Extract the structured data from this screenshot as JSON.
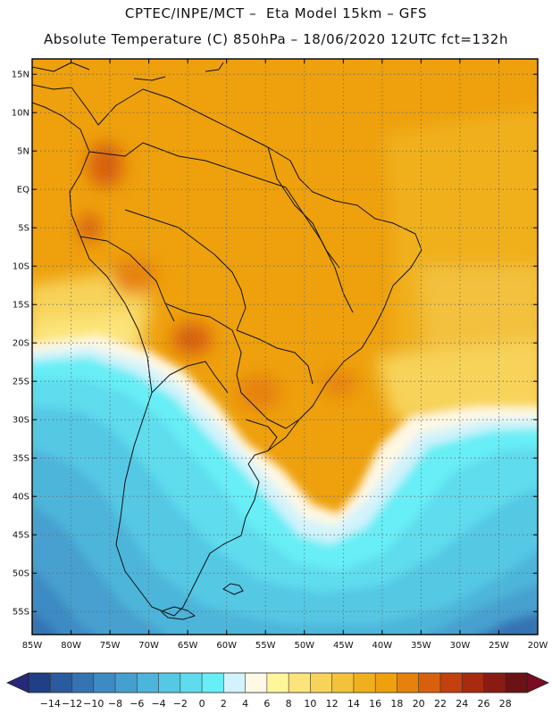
{
  "header": {
    "line1": "CPTEC/INPE/MCT –  Eta Model 15km – GFS",
    "line2": "Absolute Temperature (C) 850hPa – 18/06/2020 12UTC fct=132h"
  },
  "map": {
    "lon_range": [
      -85,
      -20
    ],
    "lat_range": [
      -58,
      17
    ],
    "lat_labels": [
      "15N",
      "10N",
      "5N",
      "EQ",
      "5S",
      "10S",
      "15S",
      "20S",
      "25S",
      "30S",
      "35S",
      "40S",
      "45S",
      "50S",
      "55S"
    ],
    "lat_values": [
      15,
      10,
      5,
      0,
      -5,
      -10,
      -15,
      -20,
      -25,
      -30,
      -35,
      -40,
      -45,
      -50,
      -55
    ],
    "lon_labels": [
      "85W",
      "80W",
      "75W",
      "70W",
      "65W",
      "60W",
      "55W",
      "50W",
      "45W",
      "40W",
      "35W",
      "30W",
      "25W",
      "20W"
    ],
    "lon_values": [
      -85,
      -80,
      -75,
      -70,
      -65,
      -60,
      -55,
      -50,
      -45,
      -40,
      -35,
      -30,
      -25,
      -20
    ]
  },
  "colorbar": {
    "labels": [
      "-14",
      "-12",
      "-10",
      "-8",
      "-6",
      "-4",
      "-2",
      "0",
      "2",
      "4",
      "6",
      "8",
      "10",
      "12",
      "14",
      "16",
      "18",
      "20",
      "22",
      "24",
      "26",
      "28"
    ],
    "colors": [
      "#1f3f86",
      "#2b5a9e",
      "#3573b3",
      "#3e8bc4",
      "#46a0cf",
      "#4eb5da",
      "#55c8e4",
      "#5edcee",
      "#67eef6",
      "#d2f3fb",
      "#fff8e4",
      "#fff69c",
      "#fbe57a",
      "#f7d35a",
      "#f3c13c",
      "#f0b01e",
      "#eea00d",
      "#e6820c",
      "#d8600d",
      "#c2410e",
      "#a82a10",
      "#8a1b12",
      "#6b1215"
    ],
    "arrow_left": "#27287a",
    "arrow_right": "#7a0b22"
  }
}
